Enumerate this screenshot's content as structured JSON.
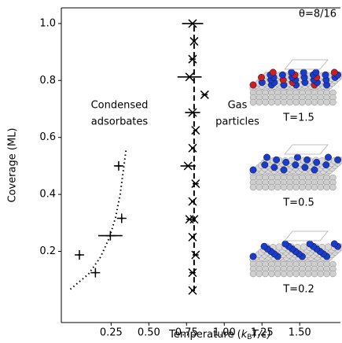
{
  "chart_data": {
    "type": "scatter",
    "xlabel_parts": [
      "Temperature (",
      "k",
      "B",
      "T/ε)"
    ],
    "ylabel": "Coverage (ML)",
    "xlim": [
      -0.08,
      1.77
    ],
    "ylim": [
      -0.05,
      1.055
    ],
    "xticks": [
      0.25,
      {
        "value": 0.5,
        "label": "0.50"
      },
      0.75,
      {
        "value": 1.0,
        "label": "1.00"
      },
      1.25,
      {
        "value": 1.5,
        "label": "1.50"
      }
    ],
    "yticks": [
      0.2,
      0.4,
      0.6,
      0.8,
      {
        "value": 1.0,
        "label": "1.0"
      }
    ],
    "annotations": [
      "θ=8/16",
      "Condensed",
      "adsorbates",
      "Gas",
      "particles",
      "T=1.5",
      "T=0.5",
      "T=0.2"
    ],
    "series": [
      {
        "marker": "x",
        "color": "#000000",
        "x": [
          0.79,
          0.79,
          0.81,
          0.79,
          0.8,
          0.77,
          0.79,
          0.81,
          0.76,
          0.79,
          0.81,
          0.79,
          0.87,
          0.77,
          0.79,
          0.8,
          0.79
        ],
        "y": [
          0.0625,
          0.125,
          0.1875,
          0.25,
          0.3125,
          0.3125,
          0.375,
          0.4375,
          0.5,
          0.5625,
          0.625,
          0.6875,
          0.75,
          0.8125,
          0.875,
          0.9375,
          1.0
        ],
        "xerr": [
          0.01,
          0.02,
          0.02,
          0.01,
          0.01,
          0.02,
          0.01,
          0.02,
          0.05,
          0.01,
          0.01,
          0.05,
          0.02,
          0.08,
          0.02,
          0.01,
          0.07
        ]
      },
      {
        "marker": "+",
        "color": "#000000",
        "x": [
          0.146,
          0.04,
          0.245,
          0.32,
          0.3
        ],
        "y": [
          0.125,
          0.1875,
          0.255,
          0.316,
          0.5
        ],
        "xerr": [
          0.01,
          0.01,
          0.08,
          0.01,
          0.02
        ]
      },
      {
        "line": "dashed",
        "color": "#000000",
        "x": [
          0.8,
          0.8
        ],
        "y": [
          0.06,
          1.0
        ]
      },
      {
        "line": "dotted",
        "color": "#000000",
        "x": [
          -0.02,
          0.1,
          0.18,
          0.24,
          0.28,
          0.31,
          0.33,
          0.35
        ],
        "y": [
          0.067,
          0.12,
          0.18,
          0.25,
          0.32,
          0.4,
          0.48,
          0.56
        ]
      }
    ]
  }
}
